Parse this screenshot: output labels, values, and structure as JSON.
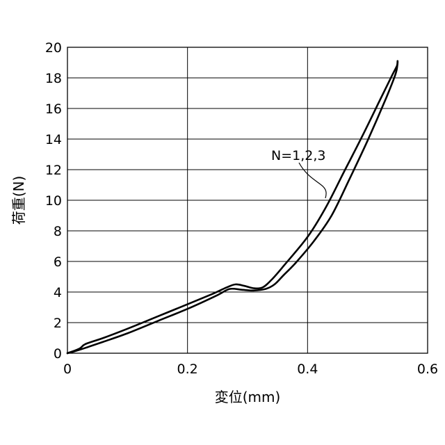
{
  "chart_data": {
    "type": "line",
    "xlabel": "変位(mm)",
    "ylabel": "荷重(N)",
    "xlim": [
      0,
      0.6
    ],
    "ylim": [
      0,
      20
    ],
    "x_ticks": [
      "0",
      "0.2",
      "0.4",
      "0.6"
    ],
    "y_ticks": [
      "0",
      "2",
      "4",
      "6",
      "8",
      "10",
      "12",
      "14",
      "16",
      "18",
      "20"
    ],
    "grid": true,
    "annotation": "N=1,2,3",
    "series": [
      {
        "points": [
          [
            0,
            0
          ],
          [
            0.02,
            0.3
          ],
          [
            0.03,
            0.6
          ],
          [
            0.06,
            1.0
          ],
          [
            0.1,
            1.6
          ],
          [
            0.15,
            2.4
          ],
          [
            0.2,
            3.2
          ],
          [
            0.24,
            3.85
          ],
          [
            0.265,
            4.3
          ],
          [
            0.28,
            4.5
          ],
          [
            0.295,
            4.4
          ],
          [
            0.31,
            4.25
          ],
          [
            0.325,
            4.3
          ],
          [
            0.34,
            4.8
          ],
          [
            0.36,
            5.7
          ],
          [
            0.4,
            7.6
          ],
          [
            0.43,
            9.5
          ],
          [
            0.46,
            11.8
          ],
          [
            0.49,
            14.1
          ],
          [
            0.52,
            16.5
          ],
          [
            0.54,
            18.1
          ],
          [
            0.549,
            18.8
          ],
          [
            0.55,
            19.1
          ]
        ]
      },
      {
        "points": [
          [
            0.55,
            19.1
          ],
          [
            0.547,
            18.3
          ],
          [
            0.53,
            16.6
          ],
          [
            0.5,
            13.9
          ],
          [
            0.47,
            11.4
          ],
          [
            0.44,
            9.0
          ],
          [
            0.41,
            7.3
          ],
          [
            0.38,
            5.9
          ],
          [
            0.36,
            5.1
          ],
          [
            0.345,
            4.5
          ],
          [
            0.33,
            4.2
          ],
          [
            0.31,
            4.1
          ],
          [
            0.29,
            4.15
          ],
          [
            0.27,
            4.2
          ],
          [
            0.25,
            3.8
          ],
          [
            0.2,
            2.9
          ],
          [
            0.15,
            2.1
          ],
          [
            0.1,
            1.3
          ],
          [
            0.06,
            0.75
          ],
          [
            0.03,
            0.35
          ],
          [
            0.01,
            0.1
          ],
          [
            0,
            0
          ]
        ]
      }
    ]
  }
}
